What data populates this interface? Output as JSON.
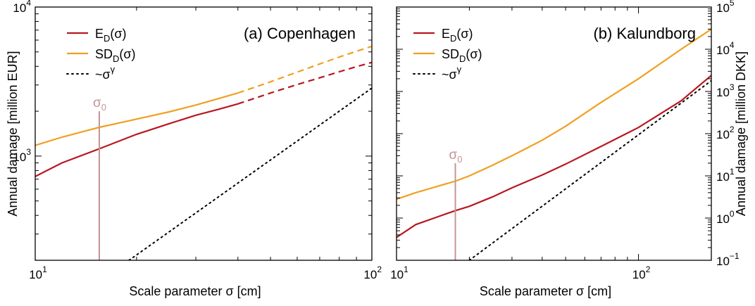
{
  "chart_data": [
    {
      "type": "line",
      "panel_label": "(a) Copenhagen",
      "xlabel": "Scale parameter σ  [cm]",
      "ylabel": "Annual damage  [million EUR]",
      "x_scale": "log",
      "y_scale": "log",
      "xlim": [
        10,
        100
      ],
      "ylim": [
        200,
        10000
      ],
      "x_ticks": [
        {
          "value": 10,
          "base": "10",
          "exp": "1"
        },
        {
          "value": 100,
          "base": "10",
          "exp": "2"
        }
      ],
      "y_ticks": [
        {
          "value": 1000,
          "base": "10",
          "exp": "3"
        },
        {
          "value": 10000,
          "base": "10",
          "exp": "4"
        }
      ],
      "legend": {
        "position": "top-left",
        "entries": [
          {
            "series": 0,
            "main": "E",
            "sub": "D",
            "tail": "(σ)"
          },
          {
            "series": 1,
            "main": "SD",
            "sub": "D",
            "tail": "(σ)"
          },
          {
            "series": 2,
            "main": "~σ",
            "sup": "γ",
            "tail": ""
          }
        ]
      },
      "grid": false,
      "sigma0": {
        "x": 15.5,
        "y_top": 2000,
        "label": "σ",
        "sub": "0",
        "color": "#c49494"
      },
      "series": [
        {
          "color": "#b81820",
          "style": "solid",
          "x": [
            10,
            12,
            15.5,
            20,
            25,
            30,
            35,
            40
          ],
          "values": [
            730,
            900,
            1120,
            1400,
            1650,
            1880,
            2060,
            2240
          ]
        },
        {
          "color": "#b81820",
          "style": "dashed",
          "x": [
            40,
            50,
            60,
            70,
            80,
            90,
            100
          ],
          "values": [
            2240,
            2650,
            3020,
            3350,
            3680,
            3980,
            4250
          ]
        },
        {
          "color": "#f0a020",
          "style": "solid",
          "x": [
            10,
            12,
            15.5,
            20,
            25,
            30,
            35,
            40
          ],
          "values": [
            1180,
            1340,
            1560,
            1770,
            1980,
            2200,
            2430,
            2650
          ]
        },
        {
          "color": "#f0a020",
          "style": "dashed",
          "x": [
            40,
            50,
            60,
            70,
            80,
            90,
            100
          ],
          "values": [
            2650,
            3150,
            3660,
            4150,
            4620,
            5050,
            5450
          ]
        },
        {
          "color": "#000000",
          "style": "dotted",
          "x": [
            19,
            100
          ],
          "values": [
            200,
            2860
          ]
        }
      ]
    },
    {
      "type": "line",
      "panel_label": "(b) Kalundborg",
      "xlabel": "Scale parameter σ  [cm]",
      "ylabel": "Annual damage  [million DKK]",
      "x_scale": "log",
      "y_scale": "log",
      "xlim": [
        10,
        200
      ],
      "ylim": [
        0.1,
        100000
      ],
      "x_ticks": [
        {
          "value": 10,
          "base": "10",
          "exp": "1"
        },
        {
          "value": 100,
          "base": "10",
          "exp": "2"
        }
      ],
      "y_ticks": [
        {
          "value": 0.1,
          "base": "10",
          "exp": "−1"
        },
        {
          "value": 1,
          "base": "10",
          "exp": "0"
        },
        {
          "value": 10,
          "base": "10",
          "exp": "1"
        },
        {
          "value": 100,
          "base": "10",
          "exp": "2"
        },
        {
          "value": 1000,
          "base": "10",
          "exp": "3"
        },
        {
          "value": 10000,
          "base": "10",
          "exp": "4"
        },
        {
          "value": 100000,
          "base": "10",
          "exp": "5"
        }
      ],
      "legend": {
        "position": "top-left",
        "entries": [
          {
            "series": 0,
            "main": "E",
            "sub": "D",
            "tail": "(σ)"
          },
          {
            "series": 1,
            "main": "SD",
            "sub": "D",
            "tail": "(σ)"
          },
          {
            "series": 2,
            "main": "~σ",
            "sup": "γ",
            "tail": ""
          }
        ]
      },
      "grid": false,
      "sigma0": {
        "x": 17.5,
        "y_top": 20,
        "label": "σ",
        "sub": "0",
        "color": "#c49494"
      },
      "series": [
        {
          "color": "#b81820",
          "style": "solid",
          "x": [
            10,
            12,
            15,
            17.5,
            20,
            25,
            30,
            40,
            50,
            70,
            100,
            150,
            200
          ],
          "values": [
            0.35,
            0.7,
            1.1,
            1.5,
            1.9,
            3.2,
            5.2,
            10.5,
            19,
            50,
            140,
            600,
            2400
          ]
        },
        {
          "color": "#f0a020",
          "style": "solid",
          "x": [
            10,
            12,
            15,
            17.5,
            20,
            25,
            30,
            40,
            50,
            70,
            100,
            150,
            200
          ],
          "values": [
            2.8,
            4.0,
            5.8,
            7.5,
            10,
            18,
            30,
            70,
            150,
            550,
            2000,
            10000,
            30000
          ]
        },
        {
          "color": "#000000",
          "style": "dotted",
          "x": [
            20,
            200
          ],
          "values": [
            0.1,
            1800
          ]
        }
      ]
    }
  ]
}
